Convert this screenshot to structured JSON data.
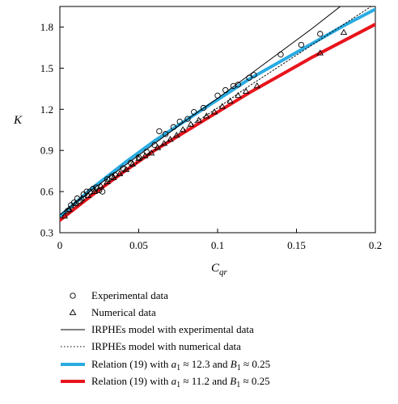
{
  "chart_data": {
    "type": "scatter",
    "xlabel": "C",
    "xlabel_sub": "qr",
    "ylabel": "K",
    "xlim": [
      0,
      0.2
    ],
    "ylim": [
      0.3,
      1.95
    ],
    "x_ticks": [
      0,
      0.05,
      0.1,
      0.15,
      0.2
    ],
    "x_tick_labels": [
      "0",
      "0.05",
      "0.1",
      "0.15",
      "0.2"
    ],
    "y_ticks": [
      0.3,
      0.6,
      0.9,
      1.2,
      1.5,
      1.8
    ],
    "y_tick_labels": [
      "0.3",
      "0.6",
      "0.9",
      "1.2",
      "1.5",
      "1.8"
    ],
    "grid": false,
    "legend_position": "below",
    "series": [
      {
        "name": "Experimental data",
        "kind": "markers",
        "marker": "circle",
        "color": "#000000",
        "points": [
          [
            0.005,
            0.46
          ],
          [
            0.007,
            0.5
          ],
          [
            0.009,
            0.52
          ],
          [
            0.011,
            0.55
          ],
          [
            0.013,
            0.53
          ],
          [
            0.015,
            0.58
          ],
          [
            0.017,
            0.6
          ],
          [
            0.019,
            0.6
          ],
          [
            0.021,
            0.62
          ],
          [
            0.023,
            0.63
          ],
          [
            0.025,
            0.61
          ],
          [
            0.027,
            0.6
          ],
          [
            0.03,
            0.69
          ],
          [
            0.033,
            0.71
          ],
          [
            0.035,
            0.72
          ],
          [
            0.04,
            0.77
          ],
          [
            0.045,
            0.81
          ],
          [
            0.05,
            0.85
          ],
          [
            0.055,
            0.89
          ],
          [
            0.06,
            0.94
          ],
          [
            0.063,
            1.04
          ],
          [
            0.067,
            1.02
          ],
          [
            0.072,
            1.07
          ],
          [
            0.076,
            1.11
          ],
          [
            0.081,
            1.13
          ],
          [
            0.085,
            1.18
          ],
          [
            0.091,
            1.21
          ],
          [
            0.1,
            1.3
          ],
          [
            0.105,
            1.34
          ],
          [
            0.11,
            1.37
          ],
          [
            0.113,
            1.38
          ],
          [
            0.12,
            1.43
          ],
          [
            0.123,
            1.45
          ],
          [
            0.14,
            1.6
          ],
          [
            0.153,
            1.67
          ],
          [
            0.165,
            1.75
          ]
        ]
      },
      {
        "name": "Numerical data",
        "kind": "markers",
        "marker": "triangle",
        "color": "#000000",
        "points": [
          [
            0.003,
            0.42
          ],
          [
            0.006,
            0.47
          ],
          [
            0.01,
            0.51
          ],
          [
            0.014,
            0.55
          ],
          [
            0.018,
            0.57
          ],
          [
            0.022,
            0.6
          ],
          [
            0.026,
            0.64
          ],
          [
            0.03,
            0.67
          ],
          [
            0.034,
            0.7
          ],
          [
            0.038,
            0.73
          ],
          [
            0.042,
            0.76
          ],
          [
            0.046,
            0.8
          ],
          [
            0.05,
            0.84
          ],
          [
            0.054,
            0.86
          ],
          [
            0.058,
            0.88
          ],
          [
            0.062,
            0.92
          ],
          [
            0.066,
            0.95
          ],
          [
            0.07,
            0.98
          ],
          [
            0.074,
            1.01
          ],
          [
            0.078,
            1.05
          ],
          [
            0.083,
            1.09
          ],
          [
            0.088,
            1.12
          ],
          [
            0.093,
            1.15
          ],
          [
            0.098,
            1.18
          ],
          [
            0.103,
            1.22
          ],
          [
            0.108,
            1.26
          ],
          [
            0.113,
            1.3
          ],
          [
            0.118,
            1.33
          ],
          [
            0.125,
            1.37
          ],
          [
            0.165,
            1.61
          ],
          [
            0.18,
            1.76
          ]
        ]
      },
      {
        "name": "IRPHEs model with experimental data",
        "kind": "line",
        "color": "#000000",
        "width": 1,
        "dash": "",
        "x": [
          0,
          0.02,
          0.04,
          0.06,
          0.08,
          0.1,
          0.12,
          0.14,
          0.16,
          0.18,
          0.2
        ],
        "y": [
          0.43,
          0.61,
          0.78,
          0.95,
          1.12,
          1.28,
          1.45,
          1.62,
          1.79,
          1.97,
          2.14
        ]
      },
      {
        "name": "IRPHEs model with numerical data",
        "kind": "line",
        "color": "#000000",
        "width": 1,
        "dash": "1.5,2.5",
        "x": [
          0,
          0.02,
          0.04,
          0.06,
          0.08,
          0.1,
          0.12,
          0.14,
          0.16,
          0.18,
          0.2
        ],
        "y": [
          0.41,
          0.58,
          0.74,
          0.9,
          1.06,
          1.21,
          1.37,
          1.52,
          1.67,
          1.82,
          1.97
        ]
      },
      {
        "name": "Relation (19) with a1 ≈ 12.3 and B1 ≈ 0.25",
        "kind": "line",
        "color": "#29abe2",
        "width": 4,
        "dash": "",
        "x": [
          0,
          0.02,
          0.04,
          0.06,
          0.08,
          0.1,
          0.12,
          0.14,
          0.16,
          0.18,
          0.2
        ],
        "y": [
          0.42,
          0.62,
          0.8,
          0.97,
          1.12,
          1.27,
          1.42,
          1.55,
          1.68,
          1.81,
          1.93
        ]
      },
      {
        "name": "Relation (19) with a1 ≈ 11.2 and B1 ≈ 0.25",
        "kind": "line",
        "color": "#e8141c",
        "width": 4,
        "dash": "",
        "x": [
          0,
          0.02,
          0.04,
          0.06,
          0.08,
          0.1,
          0.12,
          0.14,
          0.16,
          0.18,
          0.2
        ],
        "y": [
          0.39,
          0.57,
          0.74,
          0.9,
          1.04,
          1.18,
          1.32,
          1.45,
          1.58,
          1.7,
          1.82
        ]
      }
    ],
    "legend": [
      {
        "symbol": "circle",
        "label": "Experimental data"
      },
      {
        "symbol": "triangle",
        "label": "Numerical data"
      },
      {
        "symbol": "solid-thin",
        "label": "IRPHEs model with experimental data"
      },
      {
        "symbol": "dotted-thin",
        "label": "IRPHEs model with numerical data"
      },
      {
        "symbol": "solid-blue",
        "label_prefix": "Relation (19) with ",
        "a_sym": "a",
        "a_sub": "1",
        "a_val": " ≈ 12.3 and ",
        "b_sym": "B",
        "b_sub": "1",
        "b_val": " ≈ 0.25"
      },
      {
        "symbol": "solid-red",
        "label_prefix": "Relation (19) with ",
        "a_sym": "a",
        "a_sub": "1",
        "a_val": " ≈ 11.2 and ",
        "b_sym": "B",
        "b_sub": "1",
        "b_val": " ≈ 0.25"
      }
    ]
  }
}
